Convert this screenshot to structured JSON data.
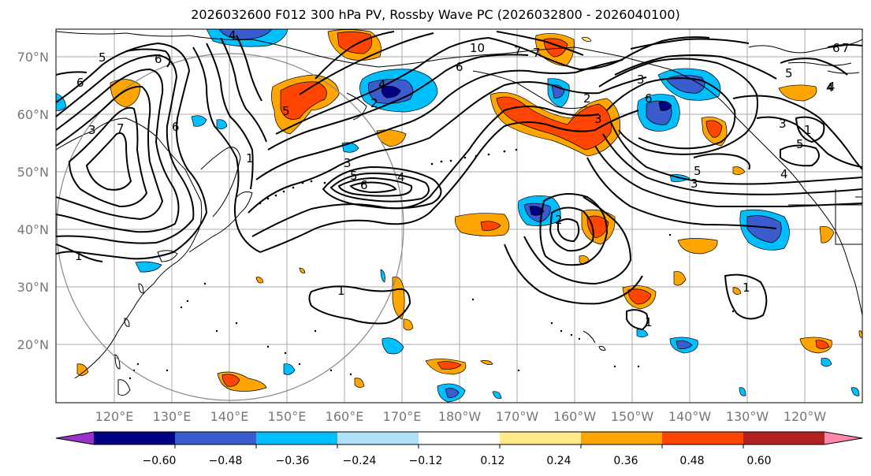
{
  "title": "2026032600 F012 300 hPa PV, Rossby Wave PC (2026032800 - 2026040100)",
  "lat_labels": [
    "70°N",
    "60°N",
    "50°N",
    "40°N",
    "30°N",
    "20°N"
  ],
  "lon_labels": [
    "120°E",
    "130°E",
    "140°E",
    "150°E",
    "160°E",
    "170°E",
    "180°W",
    "170°W",
    "160°W",
    "150°W",
    "140°W",
    "130°W",
    "120°W"
  ],
  "colorbar": {
    "colors": [
      "#9933cc",
      "#000080",
      "#3a5ccc",
      "#00bfff",
      "#b0e0fa",
      "#ffffff",
      "#ffe98a",
      "#ffa500",
      "#ff4500",
      "#b22222",
      "#ff88aa"
    ],
    "tick_labels": [
      "−0.60",
      "−0.48",
      "−0.36",
      "−0.24",
      "−0.12",
      "0.12",
      "0.24",
      "0.36",
      "0.48",
      "0.60"
    ]
  },
  "contour_labels": [
    "5",
    "6",
    "6",
    "7",
    "6",
    "3",
    "4",
    "5",
    "6",
    "4",
    "2",
    "3",
    "5",
    "6",
    "4",
    "1",
    "1",
    "10",
    "6",
    "5",
    "7",
    "3",
    "4",
    "3",
    "2",
    "4",
    "5",
    "3",
    "1",
    "1",
    "1",
    "1",
    "2",
    "5",
    "4",
    "7",
    "6",
    "3",
    "7"
  ]
}
